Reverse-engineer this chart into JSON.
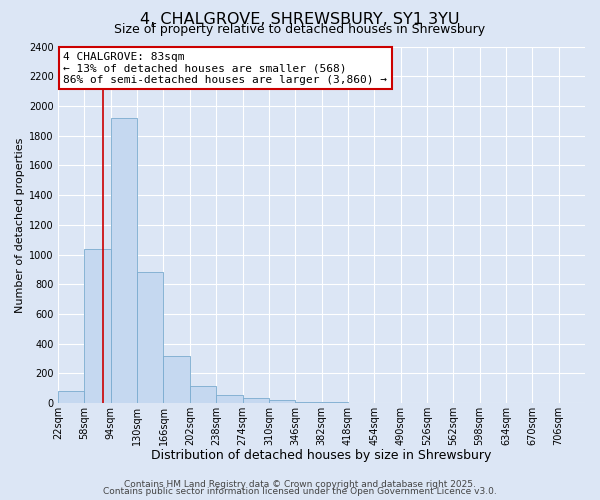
{
  "title": "4, CHALGROVE, SHREWSBURY, SY1 3YU",
  "subtitle": "Size of property relative to detached houses in Shrewsbury",
  "xlabel": "Distribution of detached houses by size in Shrewsbury",
  "ylabel": "Number of detached properties",
  "bin_edges": [
    22,
    58,
    94,
    130,
    166,
    202,
    238,
    274,
    310,
    346,
    382,
    418,
    454,
    490,
    526,
    562,
    598,
    634,
    670,
    706,
    742
  ],
  "bar_heights": [
    85,
    1040,
    1920,
    880,
    320,
    115,
    55,
    35,
    20,
    10,
    5,
    2,
    1,
    0,
    0,
    0,
    0,
    0,
    0,
    0
  ],
  "bar_color": "#c5d8f0",
  "bar_edgecolor": "#7aabcf",
  "background_color": "#dce6f5",
  "ax_background_color": "#dce6f5",
  "grid_color": "#ffffff",
  "property_value": 83,
  "vline_color": "#cc0000",
  "annotation_line1": "4 CHALGROVE: 83sqm",
  "annotation_line2": "← 13% of detached houses are smaller (568)",
  "annotation_line3": "86% of semi-detached houses are larger (3,860) →",
  "annotation_box_facecolor": "#ffffff",
  "annotation_box_edgecolor": "#cc0000",
  "ylim": [
    0,
    2400
  ],
  "yticks": [
    0,
    200,
    400,
    600,
    800,
    1000,
    1200,
    1400,
    1600,
    1800,
    2000,
    2200,
    2400
  ],
  "footer_line1": "Contains HM Land Registry data © Crown copyright and database right 2025.",
  "footer_line2": "Contains public sector information licensed under the Open Government Licence v3.0.",
  "title_fontsize": 11.5,
  "subtitle_fontsize": 9,
  "xlabel_fontsize": 9,
  "ylabel_fontsize": 8,
  "tick_fontsize": 7,
  "annotation_fontsize": 8,
  "footer_fontsize": 6.5
}
